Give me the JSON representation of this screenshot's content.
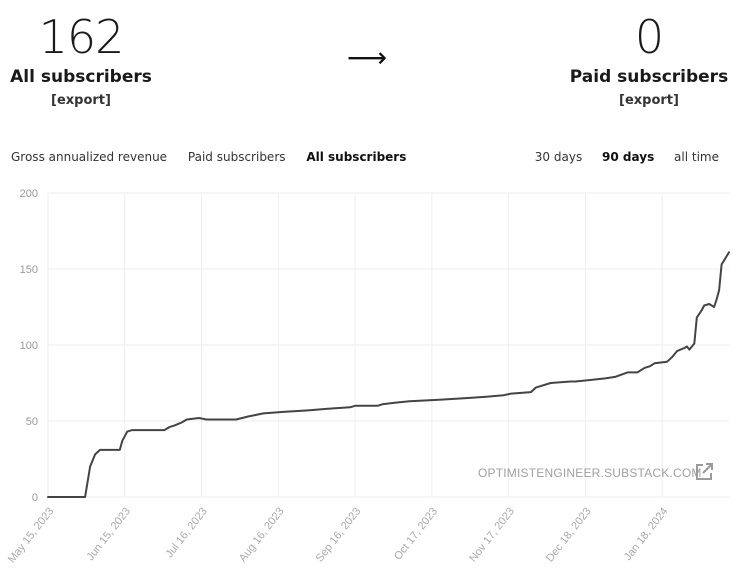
{
  "stats": {
    "all": {
      "value": "162",
      "label": "All subscribers",
      "export": "[export]"
    },
    "arrow": "⟶",
    "paid": {
      "value": "0",
      "label": "Paid subscribers",
      "export": "[export]"
    }
  },
  "tabs": [
    {
      "label": "Gross annualized revenue",
      "active": false
    },
    {
      "label": "Paid subscribers",
      "active": false
    },
    {
      "label": "All subscribers",
      "active": true
    }
  ],
  "ranges": [
    {
      "label": "30 days",
      "active": false
    },
    {
      "label": "90 days",
      "active": true
    },
    {
      "label": "all time",
      "active": false
    }
  ],
  "watermark": "OPTIMISTENGINEER.SUBSTACK.COM",
  "icons": {
    "external_link": "external-link-icon"
  },
  "colors": {
    "line": "#444444",
    "grid": "#eeeeee"
  },
  "chart_data": {
    "type": "line",
    "ylim": [
      0,
      200
    ],
    "yticks": [
      0,
      50,
      100,
      150,
      200
    ],
    "xticks": [
      "May 15, 2023",
      "Jun 15, 2023",
      "Jul 16, 2023",
      "Aug 16, 2023",
      "Sep 16, 2023",
      "Oct 17, 2023",
      "Nov 17, 2023",
      "Dec 18, 2023",
      "Jan 18, 2024"
    ],
    "grid": true,
    "series": [
      {
        "x": [
          "2023-05-15",
          "2023-05-30",
          "2023-06-01",
          "2023-06-03",
          "2023-06-05",
          "2023-06-13",
          "2023-06-14",
          "2023-06-16",
          "2023-06-18",
          "2023-07-01",
          "2023-07-03",
          "2023-07-05",
          "2023-07-08",
          "2023-07-10",
          "2023-07-15",
          "2023-07-18",
          "2023-07-30",
          "2023-08-04",
          "2023-08-10",
          "2023-08-18",
          "2023-08-28",
          "2023-09-05",
          "2023-09-14",
          "2023-09-16",
          "2023-09-25",
          "2023-09-27",
          "2023-10-02",
          "2023-10-08",
          "2023-10-20",
          "2023-10-30",
          "2023-11-08",
          "2023-11-15",
          "2023-11-18",
          "2023-11-26",
          "2023-11-28",
          "2023-12-04",
          "2023-12-12",
          "2023-12-14",
          "2023-12-20",
          "2023-12-26",
          "2023-12-30",
          "2024-01-04",
          "2024-01-08",
          "2024-01-11",
          "2024-01-13",
          "2024-01-15",
          "2024-01-20",
          "2024-01-22",
          "2024-01-24",
          "2024-01-27",
          "2024-01-28",
          "2024-01-29",
          "2024-01-31",
          "2024-02-01",
          "2024-02-03",
          "2024-02-04",
          "2024-02-06",
          "2024-02-08",
          "2024-02-09",
          "2024-02-10",
          "2024-02-11",
          "2024-02-14"
        ],
        "values": [
          0,
          0,
          20,
          28,
          31,
          31,
          37,
          43,
          44,
          44,
          46,
          47,
          49,
          51,
          52,
          51,
          51,
          53,
          55,
          56,
          57,
          58,
          59,
          60,
          60,
          61,
          62,
          63,
          64,
          65,
          66,
          67,
          68,
          69,
          72,
          75,
          76,
          76,
          77,
          78,
          79,
          82,
          82,
          85,
          86,
          88,
          89,
          92,
          96,
          98,
          99,
          97,
          101,
          118,
          123,
          126,
          127,
          125,
          130,
          136,
          153,
          161
        ]
      }
    ]
  }
}
